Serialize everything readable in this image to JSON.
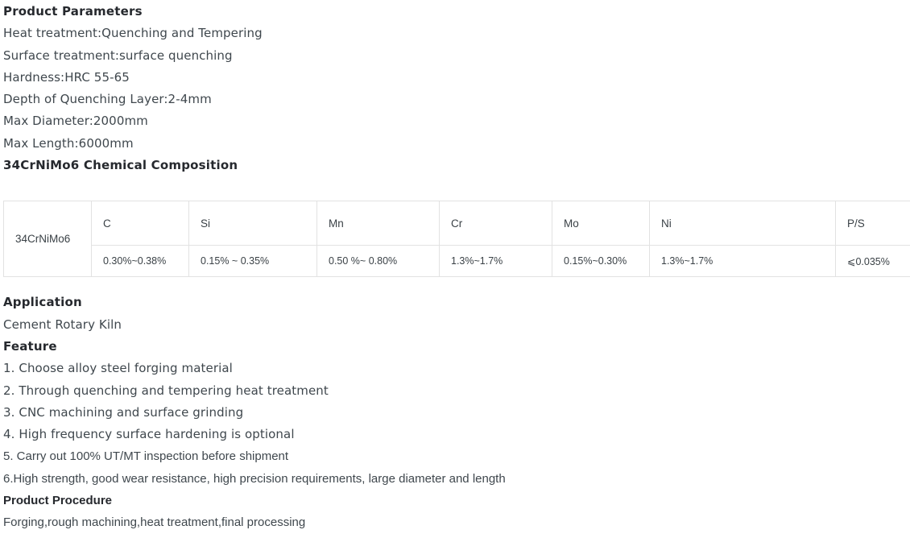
{
  "sections": {
    "product_parameters": {
      "heading": "Product Parameters",
      "lines": [
        "Heat treatment:Quenching and Tempering",
        "Surface treatment:surface quenching",
        "Hardness:HRC 55-65",
        "Depth of Quenching Layer:2-4mm",
        "Max Diameter:2000mm",
        "Max Length:6000mm"
      ]
    },
    "composition": {
      "heading": "34CrNiMo6 Chemical Composition",
      "table": {
        "row_label": "34CrNiMo6",
        "columns": [
          "C",
          "Si",
          "Mn",
          "Cr",
          "Mo",
          "Ni",
          "P/S"
        ],
        "values": [
          "0.30%~0.38%",
          "0.15% ~ 0.35%",
          "0.50 %~ 0.80%",
          "1.3%~1.7%",
          "0.15%~0.30%",
          "1.3%~1.7%",
          "⩽0.035%"
        ]
      }
    },
    "application": {
      "heading": "Application",
      "text": "Cement Rotary Kiln"
    },
    "feature": {
      "heading": "Feature",
      "items": [
        "1. Choose alloy steel forging material",
        "2. Through quenching and tempering heat treatment",
        "3. CNC machining and surface grinding",
        "4. High frequency surface hardening is optional",
        "5. Carry out 100% UT/MT inspection before shipment",
        "6.High strength, good wear resistance, high precision requirements, large diameter and length"
      ]
    },
    "procedure": {
      "heading": "Product Procedure",
      "text": "Forging,rough machining,heat treatment,final processing"
    }
  },
  "colors": {
    "heading_text": "#26292e",
    "body_text": "#3f474d",
    "table_border": "#e2e2e2",
    "background": "#ffffff"
  }
}
